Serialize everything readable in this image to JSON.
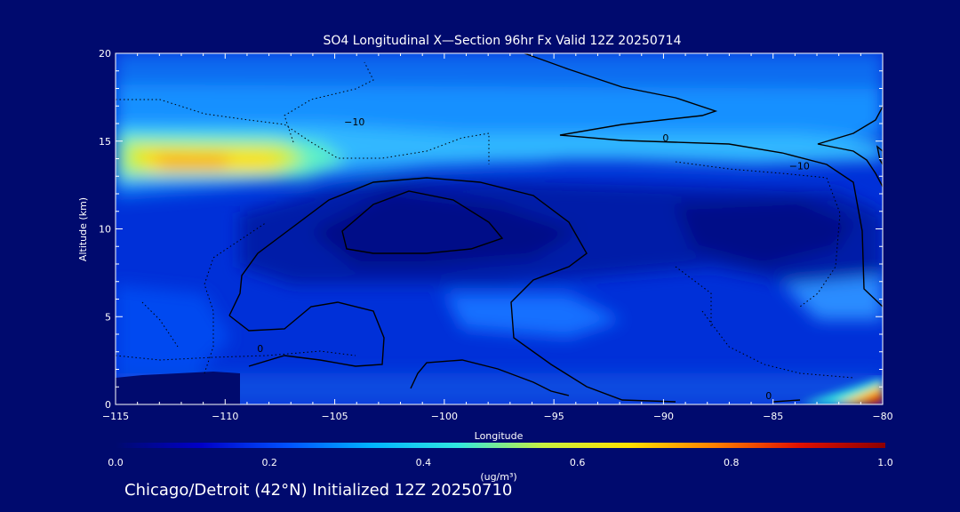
{
  "chart_data": {
    "type": "heatmap",
    "title": "SO4 Longitudinal X—Section 96hr  Fx Valid 12Z 20250714",
    "xlabel": "Longitude",
    "ylabel": "Altitude (km)",
    "xlim": [
      -115,
      -80
    ],
    "ylim": [
      0,
      20
    ],
    "x_ticks": [
      -115,
      -110,
      -105,
      -100,
      -95,
      -90,
      -85,
      -80
    ],
    "y_ticks": [
      0,
      5,
      10,
      15,
      20
    ],
    "colorbar": {
      "min": 0.0,
      "max": 1.0,
      "ticks": [
        "0.0",
        "0.2",
        "0.4",
        "0.6",
        "0.8",
        "1.0"
      ],
      "unit": "(ug/m³)",
      "colors": [
        "#000a6e",
        "#0000c8",
        "#0050ff",
        "#00b4ff",
        "#30e8e0",
        "#c8f040",
        "#ffe000",
        "#ff8000",
        "#e01000",
        "#8c0000"
      ]
    },
    "field_features": [
      {
        "lon": -112,
        "alt": 13.8,
        "value": 0.65
      },
      {
        "lon": -104,
        "alt": 14.2,
        "value": 0.35
      },
      {
        "lon": -95,
        "alt": 15.0,
        "value": 0.3
      },
      {
        "lon": -85,
        "alt": 16.0,
        "value": 0.25
      },
      {
        "lon": -80.2,
        "alt": 0.3,
        "value": 0.95
      },
      {
        "lon": -101,
        "alt": 9.5,
        "value": 0.05
      }
    ],
    "contour_labels": [
      {
        "text": "0",
        "lon": -89.9,
        "alt": 15.0
      },
      {
        "text": "-10",
        "lon": -104.1,
        "alt": 15.9
      },
      {
        "text": "-10",
        "lon": -83.8,
        "alt": 13.4
      },
      {
        "text": "0",
        "lon": -108.4,
        "alt": 3.0
      },
      {
        "text": "0",
        "lon": -85.2,
        "alt": 0.3
      }
    ]
  },
  "footer": "Chicago/Detroit (42°N) Initialized 12Z 20250710"
}
